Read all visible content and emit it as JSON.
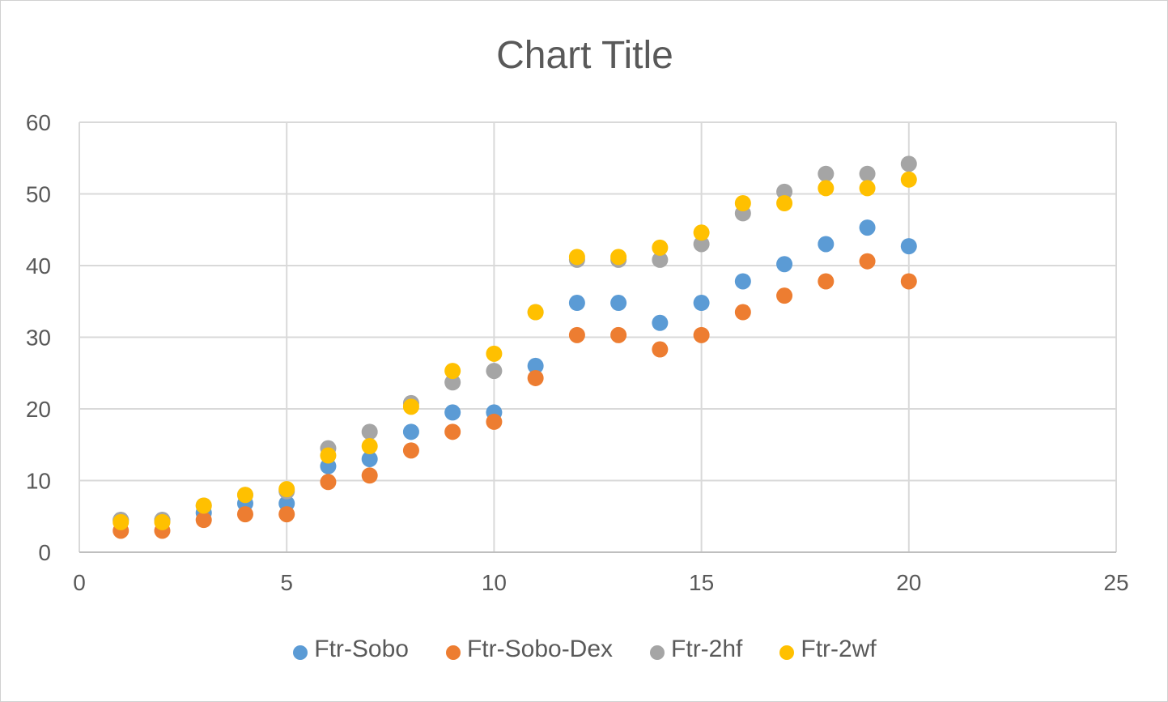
{
  "chart_data": {
    "type": "scatter",
    "title": "Chart Title",
    "xlim": [
      0,
      25
    ],
    "ylim": [
      0,
      60
    ],
    "xticks": [
      0,
      5,
      10,
      15,
      20,
      25
    ],
    "yticks": [
      0,
      10,
      20,
      30,
      40,
      50,
      60
    ],
    "grid": true,
    "legend_position": "bottom",
    "x": [
      1,
      2,
      3,
      4,
      5,
      6,
      7,
      8,
      9,
      10,
      11,
      12,
      13,
      14,
      15,
      16,
      17,
      18,
      19,
      20
    ],
    "series": [
      {
        "name": "Ftr-Sobo",
        "color": "#5B9BD5",
        "values": [
          4.5,
          4.5,
          5.5,
          6.8,
          6.8,
          12,
          13,
          16.8,
          19.5,
          19.5,
          26,
          34.8,
          34.8,
          32,
          34.8,
          37.8,
          40.2,
          43,
          45.3,
          42.7
        ]
      },
      {
        "name": "Ftr-Sobo-Dex",
        "color": "#ED7D31",
        "values": [
          3,
          3,
          4.5,
          5.3,
          5.3,
          9.8,
          10.7,
          14.2,
          16.8,
          18.2,
          24.3,
          30.3,
          30.3,
          28.3,
          30.3,
          33.5,
          35.8,
          37.8,
          40.6,
          37.8
        ]
      },
      {
        "name": "Ftr-2hf",
        "color": "#A5A5A5",
        "values": [
          4.5,
          4.5,
          6.5,
          8,
          8.5,
          14.5,
          16.8,
          20.8,
          23.7,
          25.3,
          33.5,
          40.8,
          40.8,
          40.8,
          43,
          47.3,
          50.3,
          52.8,
          52.8,
          54.2
        ]
      },
      {
        "name": "Ftr-2wf",
        "color": "#FFC000",
        "values": [
          4.2,
          4.2,
          6.5,
          8,
          8.8,
          13.5,
          14.8,
          20.3,
          25.3,
          27.7,
          33.5,
          41.2,
          41.2,
          42.5,
          44.6,
          48.7,
          48.7,
          50.8,
          50.8,
          52
        ]
      }
    ]
  }
}
